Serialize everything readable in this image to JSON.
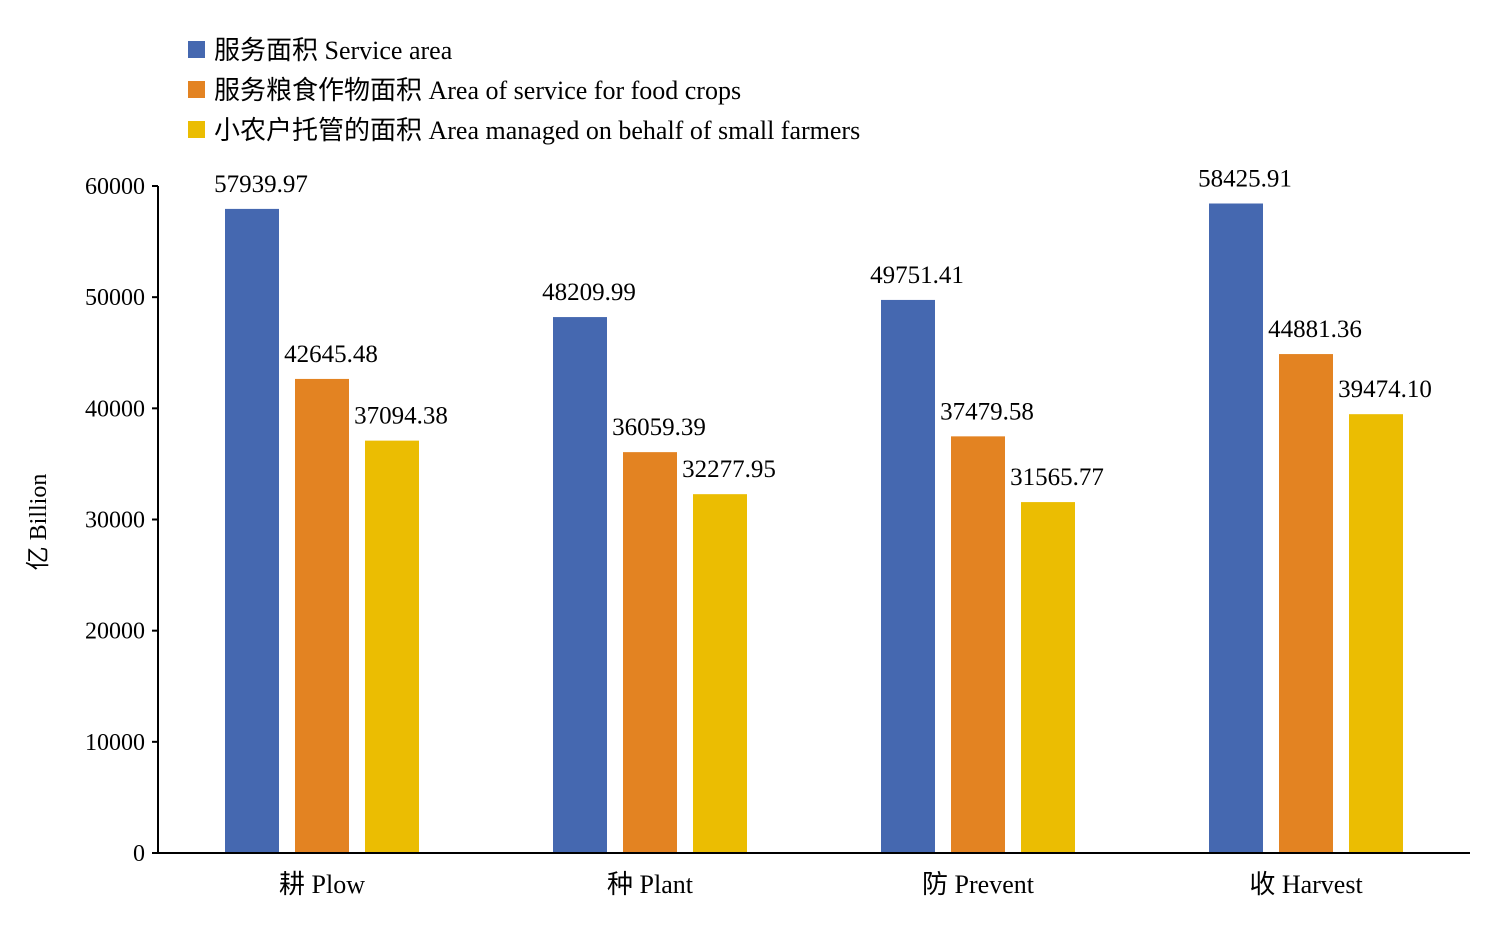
{
  "chart_data": {
    "type": "bar",
    "title": "",
    "xlabel": "",
    "ylabel": "亿 Billion",
    "ylim": [
      0,
      60000
    ],
    "yticks": [
      0,
      10000,
      20000,
      30000,
      40000,
      50000,
      60000
    ],
    "grid": false,
    "legend_placement": "top-left",
    "categories": [
      "耕 Plow",
      "种 Plant",
      "防 Prevent",
      "收 Harvest"
    ],
    "series": [
      {
        "name": "服务面积 Service area",
        "color": "#4568B0",
        "values": [
          57939.97,
          48209.99,
          49751.41,
          58425.91
        ],
        "labels": [
          "57939.97",
          "48209.99",
          "49751.41",
          "58425.91"
        ]
      },
      {
        "name": "服务粮食作物面积 Area of service for food crops",
        "color": "#E38322",
        "values": [
          42645.48,
          36059.39,
          37479.58,
          44881.36
        ],
        "labels": [
          "42645.48",
          "36059.39",
          "37479.58",
          "44881.36"
        ]
      },
      {
        "name": "小农户托管的面积 Area managed on behalf of small farmers",
        "color": "#EBBD02",
        "values": [
          37094.38,
          32277.95,
          31565.77,
          39474.1
        ],
        "labels": [
          "37094.38",
          "32277.95",
          "31565.77",
          "39474.10"
        ]
      }
    ]
  }
}
